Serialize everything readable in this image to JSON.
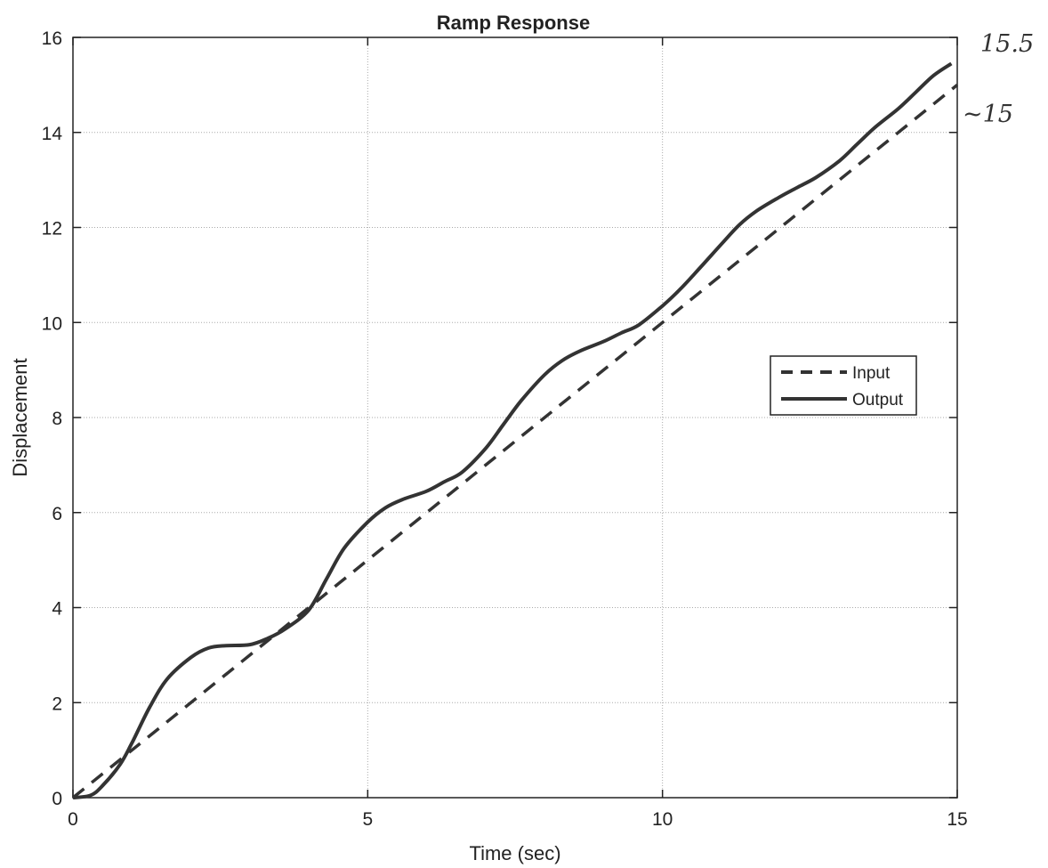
{
  "chart_data": {
    "type": "line",
    "title": "Ramp Response",
    "xlabel": "Time (sec)",
    "ylabel": "Displacement",
    "xlim": [
      0,
      15
    ],
    "ylim": [
      0,
      16
    ],
    "x_ticks": [
      0,
      5,
      10,
      15
    ],
    "y_ticks": [
      0,
      2,
      4,
      6,
      8,
      10,
      12,
      14,
      16
    ],
    "grid": true,
    "legend_position": "right",
    "series": [
      {
        "name": "Input",
        "style": "dashed",
        "color": "#333333",
        "x": [
          0,
          15
        ],
        "y": [
          0,
          15
        ]
      },
      {
        "name": "Output",
        "style": "solid",
        "color": "#333333",
        "x": [
          0,
          0.3,
          0.5,
          0.8,
          1.0,
          1.3,
          1.6,
          2.0,
          2.3,
          2.6,
          3.0,
          3.3,
          3.6,
          4.0,
          4.3,
          4.6,
          5.0,
          5.3,
          5.6,
          6.0,
          6.3,
          6.6,
          7.0,
          7.3,
          7.6,
          8.0,
          8.3,
          8.6,
          9.0,
          9.3,
          9.6,
          10.0,
          10.3,
          10.6,
          11.0,
          11.3,
          11.6,
          12.0,
          12.3,
          12.6,
          13.0,
          13.3,
          13.6,
          14.0,
          14.3,
          14.6,
          14.9
        ],
        "y": [
          0,
          0.05,
          0.25,
          0.7,
          1.15,
          1.9,
          2.5,
          2.95,
          3.15,
          3.2,
          3.22,
          3.35,
          3.55,
          3.95,
          4.6,
          5.25,
          5.8,
          6.1,
          6.28,
          6.45,
          6.65,
          6.85,
          7.35,
          7.85,
          8.35,
          8.9,
          9.2,
          9.4,
          9.6,
          9.78,
          9.95,
          10.35,
          10.7,
          11.1,
          11.65,
          12.05,
          12.35,
          12.65,
          12.85,
          13.05,
          13.4,
          13.75,
          14.1,
          14.5,
          14.85,
          15.2,
          15.45
        ]
      }
    ],
    "annotations": [
      "15.5",
      "~15"
    ]
  }
}
